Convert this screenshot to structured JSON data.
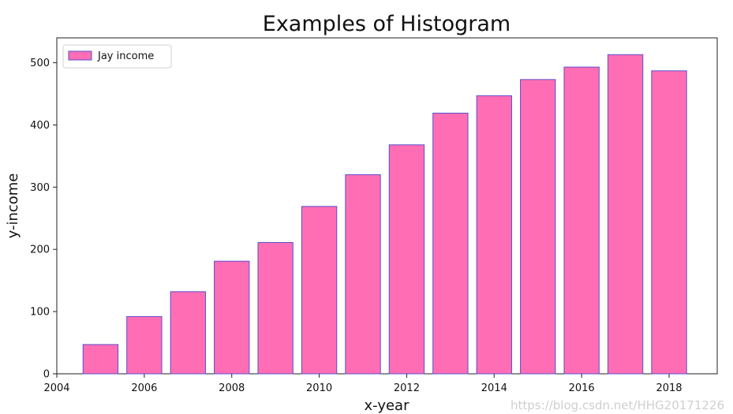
{
  "chart_data": {
    "type": "bar",
    "title": "Examples of Histogram",
    "xlabel": "x-year",
    "ylabel": "y-income",
    "x": [
      2005,
      2006,
      2007,
      2008,
      2009,
      2010,
      2011,
      2012,
      2013,
      2014,
      2015,
      2016,
      2017,
      2018
    ],
    "series": [
      {
        "name": "Jay income",
        "values": [
          47,
          92,
          132,
          181,
          211,
          269,
          320,
          368,
          419,
          447,
          473,
          493,
          513,
          487
        ]
      }
    ],
    "xlim": [
      2004,
      2019.1
    ],
    "ylim": [
      0,
      540
    ],
    "xticks": [
      2004,
      2006,
      2008,
      2010,
      2012,
      2014,
      2016,
      2018
    ],
    "yticks": [
      0,
      100,
      200,
      300,
      400,
      500
    ],
    "legend_position": "top-left",
    "grid": false,
    "colors": {
      "bar_fill": "#ff6eb4",
      "bar_edge": "#5b4ecf"
    }
  },
  "watermark": "https://blog.csdn.net/HHG20171226"
}
